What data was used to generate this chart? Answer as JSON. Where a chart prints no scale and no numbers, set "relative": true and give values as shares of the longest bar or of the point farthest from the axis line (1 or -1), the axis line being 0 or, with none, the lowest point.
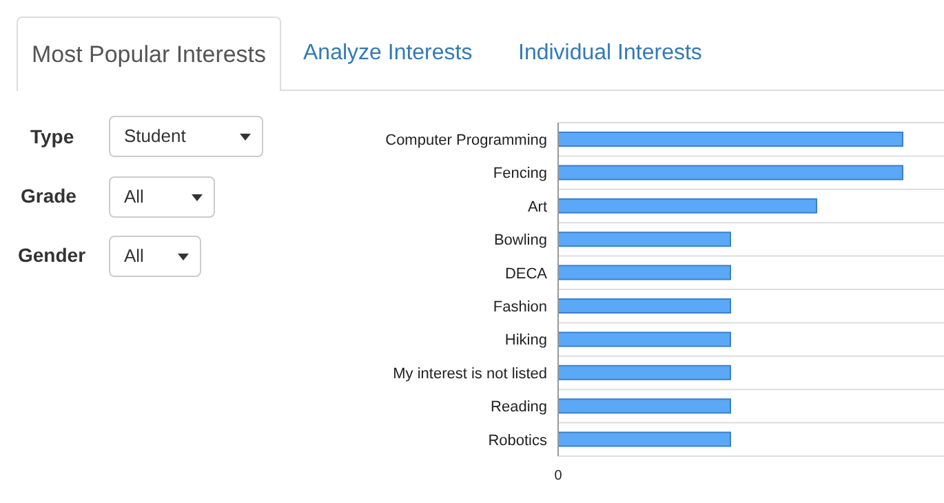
{
  "chart_data": {
    "type": "bar",
    "orientation": "horizontal",
    "relative": true,
    "grid": "y",
    "color": "#5aa8f6",
    "categories": [
      "Computer Programming",
      "Fencing",
      "Art",
      "Bowling",
      "DECA",
      "Fashion",
      "Hiking",
      "My interest is not listed",
      "Reading",
      "Robotics"
    ],
    "values": [
      1,
      1,
      0.75,
      0.5,
      0.5,
      0.5,
      0.5,
      0.5,
      0.5,
      0.5
    ],
    "annotations": [
      "Most Popular Interests",
      "Analyze Interests",
      "Individual Interests",
      "Type",
      "Student",
      "Grade",
      "All",
      "Gender",
      "All",
      "0"
    ]
  }
}
